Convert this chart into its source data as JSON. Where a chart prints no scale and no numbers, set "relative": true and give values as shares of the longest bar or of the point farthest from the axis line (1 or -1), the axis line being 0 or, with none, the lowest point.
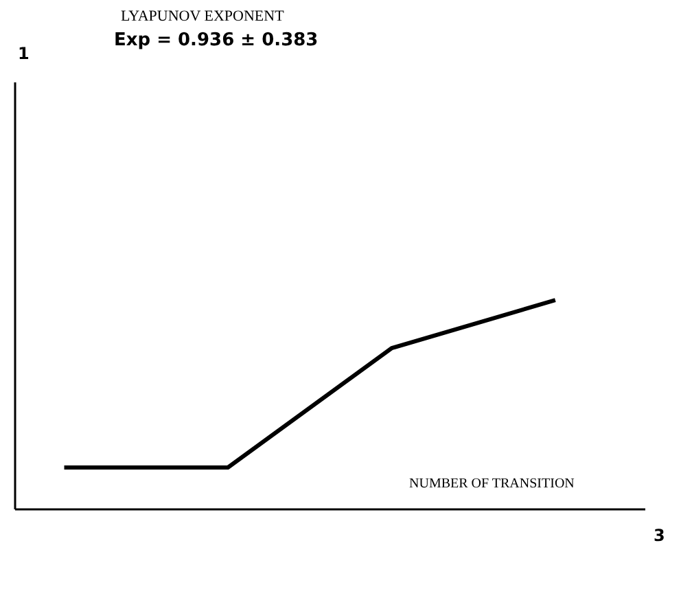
{
  "chart_data": {
    "type": "line",
    "title": "LYAPUNOV EXPONENT",
    "subtitle": "Exp = 0.936 ± 0.383",
    "xlabel": "NUMBER OF TRANSITION",
    "annotations": [
      "1",
      "3"
    ],
    "relative": true,
    "categories": [
      null,
      null,
      null,
      null
    ],
    "series": [
      {
        "color": "#000000",
        "values": [
          0.2,
          0.2,
          0.77,
          1
        ]
      }
    ]
  }
}
